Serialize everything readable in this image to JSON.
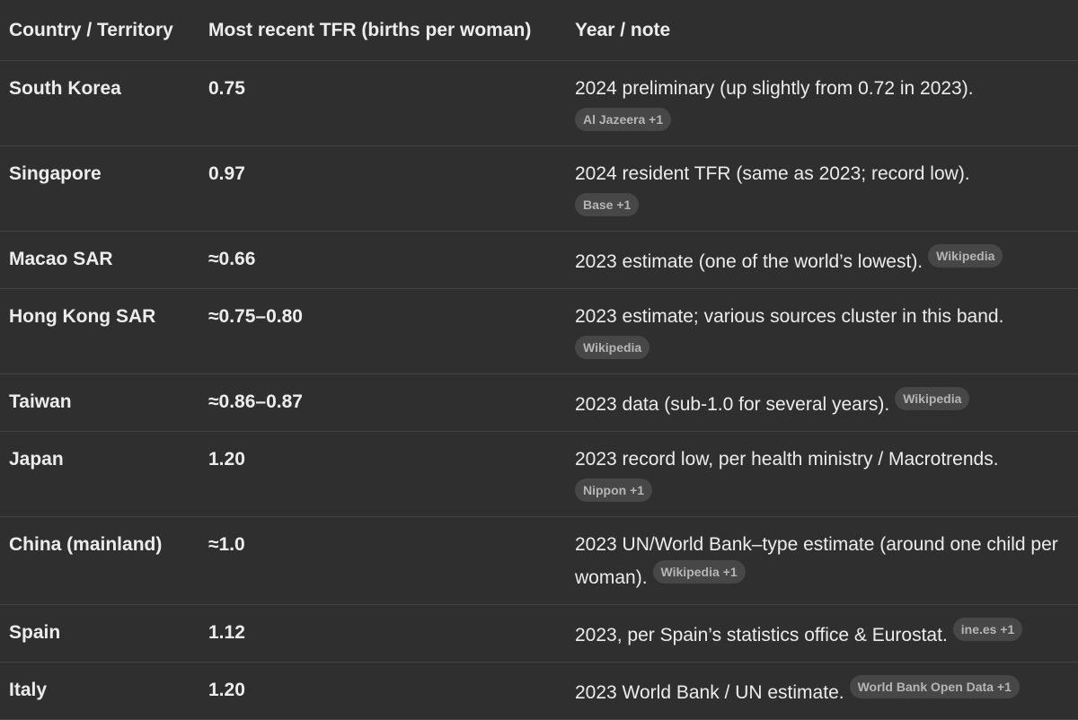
{
  "table": {
    "headers": [
      "Country / Territory",
      "Most recent TFR (births per woman)",
      "Year / note"
    ],
    "rows": [
      {
        "country": "South Korea",
        "tfr": "0.75",
        "note": "2024 preliminary (up slightly from 0.72 in 2023).",
        "source": "Al Jazeera +1"
      },
      {
        "country": "Singapore",
        "tfr": "0.97",
        "note": "2024 resident TFR (same as 2023; record low).",
        "source": "Base +1"
      },
      {
        "country": "Macao SAR",
        "tfr": "≈0.66",
        "note": "2023 estimate (one of the world’s lowest).",
        "source": "Wikipedia"
      },
      {
        "country": "Hong Kong SAR",
        "tfr": "≈0.75–0.80",
        "note": "2023 estimate; various sources cluster in this band.",
        "source": "Wikipedia"
      },
      {
        "country": "Taiwan",
        "tfr": "≈0.86–0.87",
        "note": "2023 data (sub-1.0 for several years).",
        "source": "Wikipedia"
      },
      {
        "country": "Japan",
        "tfr": "1.20",
        "note": "2023 record low, per health ministry / Macrotrends.",
        "source": "Nippon +1"
      },
      {
        "country": "China (mainland)",
        "tfr": "≈1.0",
        "note": "2023 UN/World Bank–type estimate (around one child per woman).",
        "source": "Wikipedia +1"
      },
      {
        "country": "Spain",
        "tfr": "1.12",
        "note": "2023, per Spain’s statistics office & Eurostat.",
        "source": "ine.es +1"
      },
      {
        "country": "Italy",
        "tfr": "1.20",
        "note": "2023 World Bank / UN estimate.",
        "source": "World Bank Open Data +1"
      }
    ]
  }
}
